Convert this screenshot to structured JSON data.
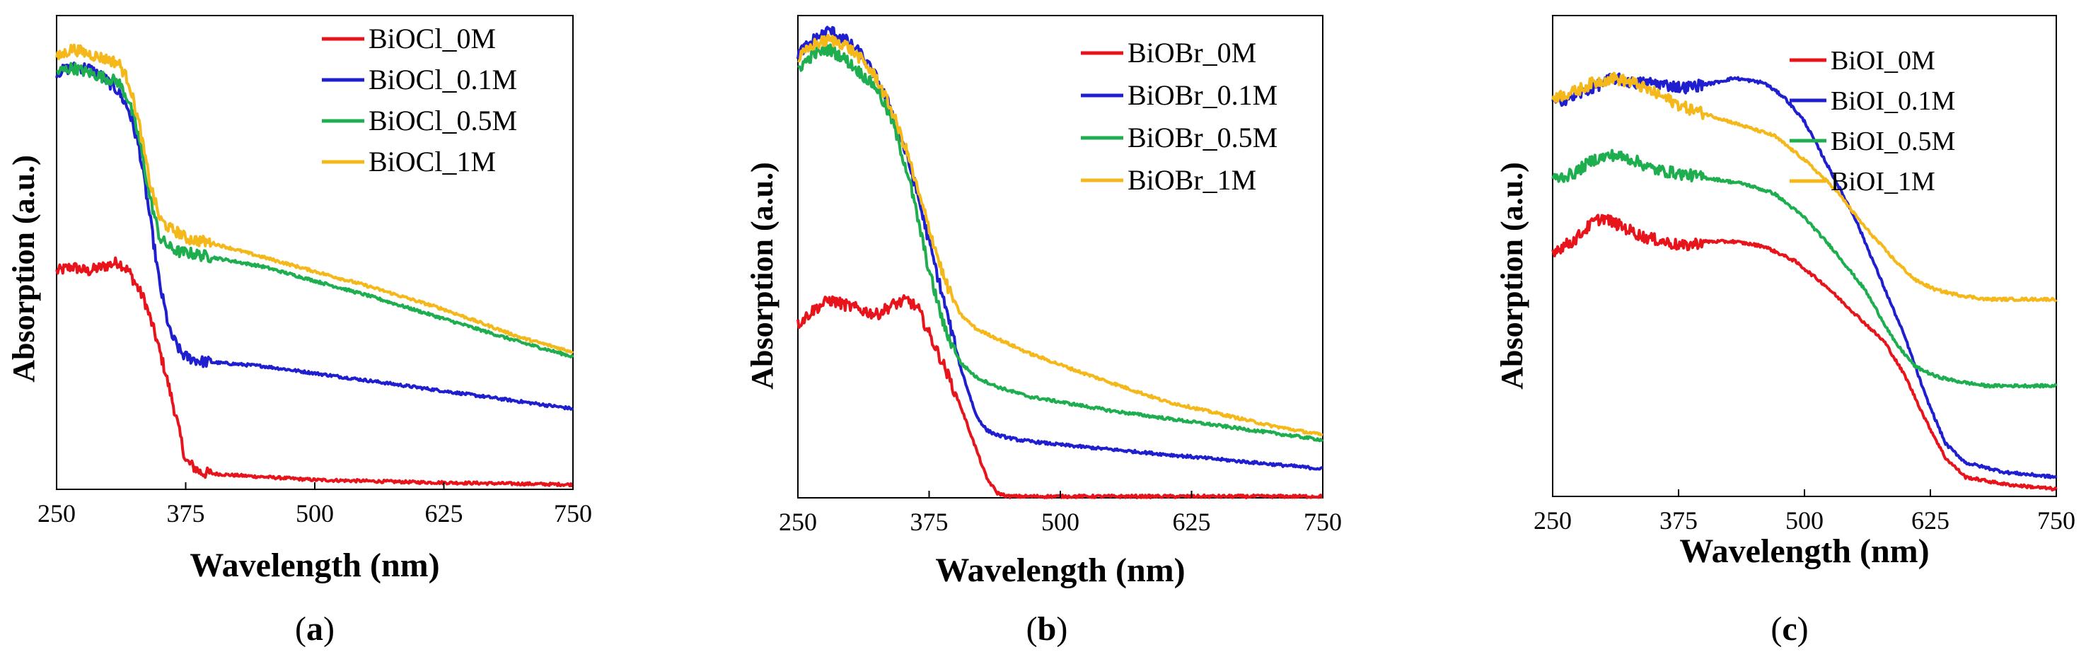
{
  "colors": {
    "BiOX_0M": "#e8141b",
    "BiOX_0.1M": "#1f1fd0",
    "BiOX_0.5M": "#1fae4f",
    "BiOX_1M": "#f5b81a",
    "axis": "#000000"
  },
  "chart_data": [
    {
      "type": "line",
      "panel_label": "a",
      "title": "",
      "xlabel": "Wavelength (nm)",
      "ylabel": "Absorption (a.u.)",
      "xlim": [
        250,
        750
      ],
      "ylim": [
        0,
        1.0
      ],
      "x_ticks": [
        "250",
        "375",
        "500",
        "625",
        "750"
      ],
      "legend_position": "top-right",
      "series": [
        {
          "name": "BiOCl_0M",
          "color_key": "BiOX_0M",
          "x": [
            250,
            265,
            280,
            295,
            310,
            320,
            335,
            345,
            355,
            365,
            375,
            390,
            420,
            500,
            600,
            750
          ],
          "y": [
            0.46,
            0.47,
            0.46,
            0.47,
            0.48,
            0.46,
            0.4,
            0.33,
            0.25,
            0.16,
            0.06,
            0.035,
            0.03,
            0.02,
            0.015,
            0.01
          ]
        },
        {
          "name": "BiOCl_0.1M",
          "color_key": "BiOX_0.1M",
          "x": [
            250,
            265,
            280,
            295,
            310,
            320,
            330,
            340,
            350,
            360,
            370,
            375,
            390,
            450,
            550,
            650,
            750
          ],
          "y": [
            0.88,
            0.89,
            0.89,
            0.87,
            0.84,
            0.8,
            0.72,
            0.58,
            0.43,
            0.33,
            0.29,
            0.28,
            0.27,
            0.26,
            0.23,
            0.2,
            0.17
          ]
        },
        {
          "name": "BiOCl_0.5M",
          "color_key": "BiOX_0.5M",
          "x": [
            250,
            265,
            280,
            295,
            310,
            320,
            330,
            340,
            350,
            360,
            370,
            375,
            400,
            450,
            500,
            550,
            625,
            700,
            750
          ],
          "y": [
            0.88,
            0.89,
            0.88,
            0.87,
            0.86,
            0.82,
            0.74,
            0.62,
            0.53,
            0.51,
            0.5,
            0.5,
            0.49,
            0.47,
            0.44,
            0.41,
            0.36,
            0.31,
            0.28
          ]
        },
        {
          "name": "BiOCl_1M",
          "color_key": "BiOX_1M",
          "x": [
            250,
            265,
            280,
            295,
            310,
            320,
            330,
            340,
            350,
            360,
            370,
            375,
            400,
            450,
            500,
            550,
            625,
            700,
            750
          ],
          "y": [
            0.91,
            0.93,
            0.92,
            0.91,
            0.9,
            0.86,
            0.77,
            0.65,
            0.57,
            0.55,
            0.54,
            0.53,
            0.52,
            0.49,
            0.46,
            0.43,
            0.38,
            0.32,
            0.29
          ]
        }
      ]
    },
    {
      "type": "line",
      "panel_label": "b",
      "title": "",
      "xlabel": "Wavelength (nm)",
      "ylabel": "Absorption (a.u.)",
      "xlim": [
        250,
        750
      ],
      "ylim": [
        0,
        1.0
      ],
      "x_ticks": [
        "250",
        "375",
        "500",
        "625",
        "750"
      ],
      "legend_position": "top-right",
      "series": [
        {
          "name": "BiOBr_0M",
          "color_key": "BiOX_0M",
          "x": [
            250,
            265,
            280,
            295,
            310,
            325,
            340,
            355,
            365,
            375,
            390,
            405,
            420,
            430,
            440,
            450,
            470,
            550,
            750
          ],
          "y": [
            0.36,
            0.39,
            0.41,
            0.4,
            0.39,
            0.38,
            0.4,
            0.41,
            0.39,
            0.34,
            0.27,
            0.19,
            0.1,
            0.04,
            0.01,
            0.003,
            0.003,
            0.003,
            0.003
          ]
        },
        {
          "name": "BiOBr_0.1M",
          "color_key": "BiOX_0.1M",
          "x": [
            250,
            265,
            280,
            295,
            310,
            325,
            340,
            355,
            365,
            375,
            390,
            405,
            420,
            430,
            440,
            460,
            500,
            600,
            750
          ],
          "y": [
            0.92,
            0.95,
            0.97,
            0.95,
            0.92,
            0.87,
            0.8,
            0.7,
            0.62,
            0.53,
            0.4,
            0.27,
            0.17,
            0.14,
            0.13,
            0.12,
            0.11,
            0.09,
            0.06
          ]
        },
        {
          "name": "BiOBr_0.5M",
          "color_key": "BiOX_0.5M",
          "x": [
            250,
            265,
            280,
            295,
            310,
            325,
            340,
            355,
            365,
            375,
            390,
            405,
            420,
            440,
            470,
            550,
            650,
            750
          ],
          "y": [
            0.89,
            0.92,
            0.93,
            0.91,
            0.88,
            0.85,
            0.78,
            0.67,
            0.57,
            0.47,
            0.35,
            0.28,
            0.25,
            0.23,
            0.21,
            0.18,
            0.15,
            0.12
          ]
        },
        {
          "name": "BiOBr_1M",
          "color_key": "BiOX_1M",
          "x": [
            250,
            265,
            280,
            295,
            310,
            325,
            340,
            355,
            365,
            375,
            390,
            405,
            420,
            440,
            470,
            520,
            600,
            700,
            750
          ],
          "y": [
            0.91,
            0.94,
            0.95,
            0.94,
            0.91,
            0.87,
            0.8,
            0.71,
            0.63,
            0.56,
            0.45,
            0.38,
            0.35,
            0.33,
            0.3,
            0.26,
            0.2,
            0.15,
            0.13
          ]
        }
      ]
    },
    {
      "type": "line",
      "panel_label": "c",
      "title": "",
      "xlabel": "Wavelength (nm)",
      "ylabel": "Absorption (a.u.)",
      "xlim": [
        250,
        750
      ],
      "ylim": [
        0,
        1.0
      ],
      "x_ticks": [
        "250",
        "375",
        "500",
        "625",
        "750"
      ],
      "legend_position": "top-right",
      "series": [
        {
          "name": "BiOI_0M",
          "color_key": "BiOX_0M",
          "x": [
            250,
            270,
            290,
            300,
            320,
            340,
            360,
            380,
            400,
            430,
            460,
            490,
            520,
            550,
            580,
            600,
            620,
            640,
            660,
            700,
            750
          ],
          "y": [
            0.51,
            0.53,
            0.57,
            0.58,
            0.56,
            0.54,
            0.53,
            0.52,
            0.53,
            0.53,
            0.52,
            0.49,
            0.44,
            0.38,
            0.32,
            0.25,
            0.16,
            0.08,
            0.04,
            0.025,
            0.015
          ]
        },
        {
          "name": "BiOI_0.1M",
          "color_key": "BiOX_0.1M",
          "x": [
            250,
            270,
            290,
            310,
            330,
            350,
            380,
            410,
            430,
            460,
            480,
            500,
            520,
            550,
            580,
            600,
            620,
            640,
            660,
            700,
            750
          ],
          "y": [
            0.82,
            0.83,
            0.85,
            0.87,
            0.86,
            0.86,
            0.85,
            0.86,
            0.87,
            0.86,
            0.83,
            0.78,
            0.7,
            0.58,
            0.43,
            0.33,
            0.21,
            0.11,
            0.07,
            0.05,
            0.04
          ]
        },
        {
          "name": "BiOI_0.5M",
          "color_key": "BiOX_0.5M",
          "x": [
            250,
            270,
            290,
            310,
            330,
            350,
            380,
            410,
            440,
            470,
            500,
            530,
            560,
            590,
            610,
            630,
            650,
            680,
            710,
            750
          ],
          "y": [
            0.66,
            0.67,
            0.7,
            0.71,
            0.7,
            0.68,
            0.67,
            0.66,
            0.65,
            0.63,
            0.58,
            0.51,
            0.43,
            0.32,
            0.27,
            0.25,
            0.24,
            0.23,
            0.23,
            0.23
          ]
        },
        {
          "name": "BiOI_1M",
          "color_key": "BiOX_1M",
          "x": [
            250,
            270,
            290,
            310,
            330,
            350,
            380,
            410,
            440,
            470,
            500,
            530,
            560,
            590,
            610,
            630,
            650,
            680,
            710,
            750
          ],
          "y": [
            0.83,
            0.84,
            0.86,
            0.87,
            0.86,
            0.84,
            0.81,
            0.79,
            0.77,
            0.75,
            0.7,
            0.64,
            0.56,
            0.49,
            0.45,
            0.43,
            0.42,
            0.41,
            0.41,
            0.41
          ]
        }
      ]
    }
  ]
}
